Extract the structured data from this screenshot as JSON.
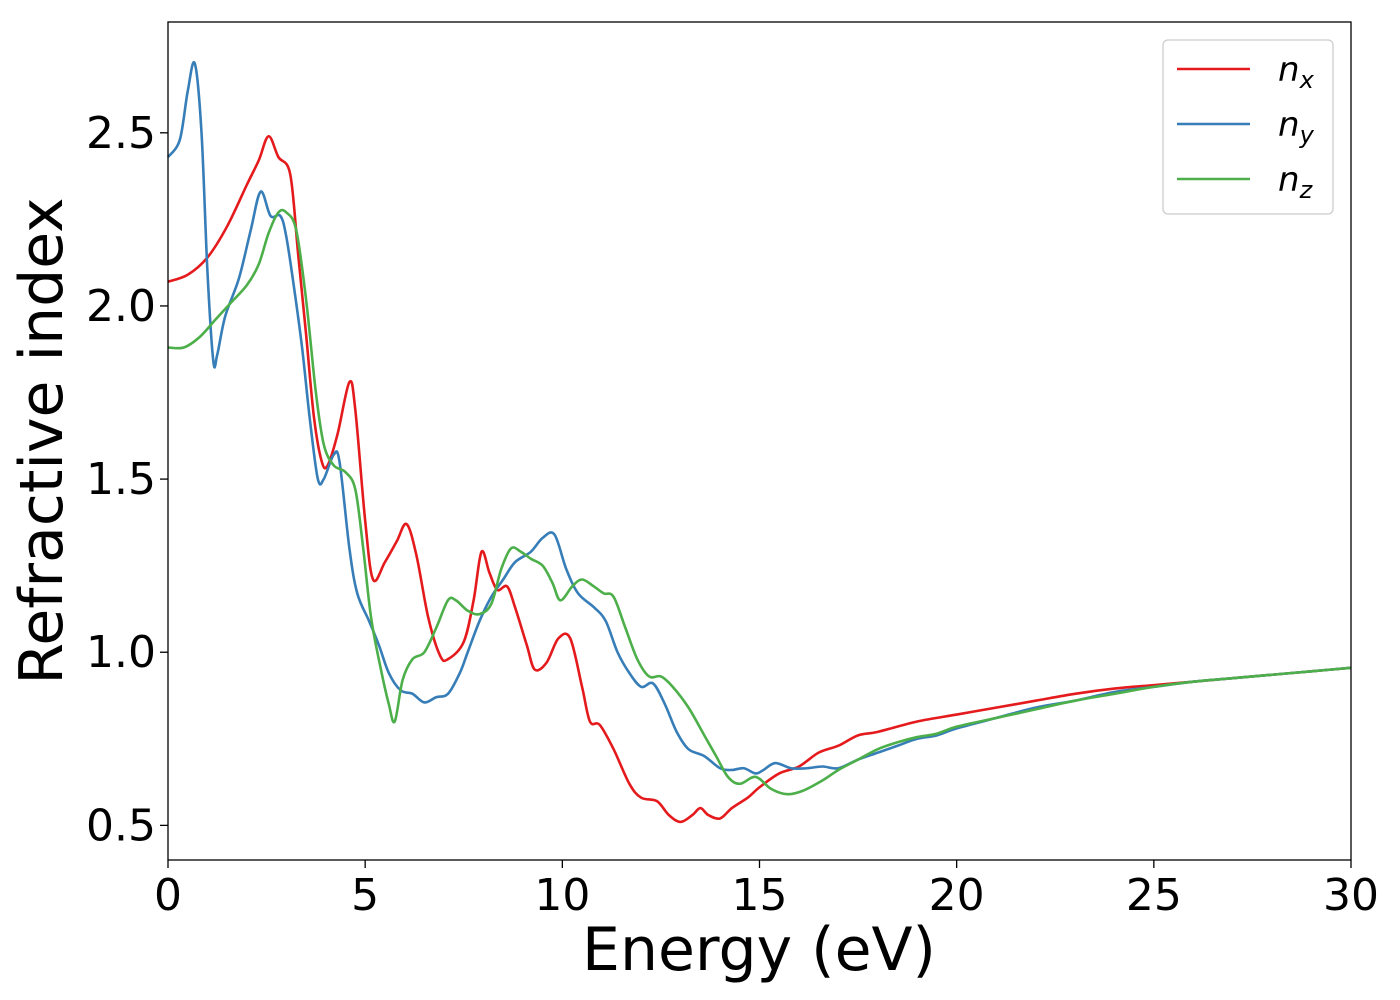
{
  "chart_data": {
    "type": "line",
    "xlabel": "Energy (eV)",
    "ylabel": "Refractive index",
    "xlim": [
      0,
      30
    ],
    "ylim": [
      0.4,
      2.82
    ],
    "xticks": [
      0,
      5,
      10,
      15,
      20,
      25,
      30
    ],
    "xtick_labels": [
      "0",
      "5",
      "10",
      "15",
      "20",
      "25",
      "30"
    ],
    "yticks": [
      0.5,
      1.0,
      1.5,
      2.0,
      2.5
    ],
    "ytick_labels": [
      "0.5",
      "1.0",
      "1.5",
      "2.0",
      "2.5"
    ],
    "grid": false,
    "legend_position": "top-right",
    "series": [
      {
        "name": "n_x",
        "label_base": "n",
        "label_sub": "x",
        "color": "#e41a1c",
        "points": [
          [
            0,
            2.07
          ],
          [
            0.5,
            2.09
          ],
          [
            1,
            2.14
          ],
          [
            1.5,
            2.23
          ],
          [
            2,
            2.35
          ],
          [
            2.3,
            2.42
          ],
          [
            2.55,
            2.49
          ],
          [
            2.8,
            2.43
          ],
          [
            3.1,
            2.38
          ],
          [
            3.3,
            2.15
          ],
          [
            3.5,
            1.92
          ],
          [
            3.7,
            1.68
          ],
          [
            3.9,
            1.55
          ],
          [
            4.05,
            1.54
          ],
          [
            4.3,
            1.63
          ],
          [
            4.6,
            1.78
          ],
          [
            4.75,
            1.7
          ],
          [
            5,
            1.38
          ],
          [
            5.2,
            1.21
          ],
          [
            5.5,
            1.26
          ],
          [
            5.8,
            1.32
          ],
          [
            6.05,
            1.37
          ],
          [
            6.3,
            1.28
          ],
          [
            6.6,
            1.1
          ],
          [
            6.9,
            0.99
          ],
          [
            7.1,
            0.98
          ],
          [
            7.5,
            1.03
          ],
          [
            7.75,
            1.15
          ],
          [
            7.95,
            1.29
          ],
          [
            8.15,
            1.23
          ],
          [
            8.35,
            1.18
          ],
          [
            8.6,
            1.19
          ],
          [
            8.8,
            1.13
          ],
          [
            9.1,
            1.02
          ],
          [
            9.3,
            0.95
          ],
          [
            9.6,
            0.97
          ],
          [
            9.9,
            1.04
          ],
          [
            10.2,
            1.04
          ],
          [
            10.5,
            0.9
          ],
          [
            10.7,
            0.8
          ],
          [
            10.95,
            0.79
          ],
          [
            11.3,
            0.72
          ],
          [
            11.7,
            0.62
          ],
          [
            12,
            0.58
          ],
          [
            12.4,
            0.57
          ],
          [
            12.7,
            0.53
          ],
          [
            13,
            0.51
          ],
          [
            13.3,
            0.53
          ],
          [
            13.5,
            0.55
          ],
          [
            13.7,
            0.53
          ],
          [
            14,
            0.52
          ],
          [
            14.3,
            0.55
          ],
          [
            14.7,
            0.58
          ],
          [
            15,
            0.61
          ],
          [
            15.5,
            0.65
          ],
          [
            16,
            0.67
          ],
          [
            16.5,
            0.71
          ],
          [
            17,
            0.73
          ],
          [
            17.5,
            0.76
          ],
          [
            18,
            0.77
          ],
          [
            19,
            0.8
          ],
          [
            20,
            0.82
          ],
          [
            21,
            0.84
          ],
          [
            22,
            0.86
          ],
          [
            23,
            0.88
          ],
          [
            24,
            0.895
          ],
          [
            25,
            0.905
          ],
          [
            26,
            0.915
          ],
          [
            27,
            0.925
          ],
          [
            28,
            0.935
          ],
          [
            29,
            0.945
          ],
          [
            30,
            0.955
          ]
        ]
      },
      {
        "name": "n_y",
        "label_base": "n",
        "label_sub": "y",
        "color": "#377eb8",
        "points": [
          [
            0,
            2.43
          ],
          [
            0.3,
            2.48
          ],
          [
            0.5,
            2.62
          ],
          [
            0.68,
            2.7
          ],
          [
            0.85,
            2.5
          ],
          [
            1,
            2.1
          ],
          [
            1.15,
            1.84
          ],
          [
            1.25,
            1.86
          ],
          [
            1.45,
            1.97
          ],
          [
            1.8,
            2.08
          ],
          [
            2.1,
            2.22
          ],
          [
            2.35,
            2.33
          ],
          [
            2.6,
            2.26
          ],
          [
            2.85,
            2.26
          ],
          [
            3,
            2.2
          ],
          [
            3.2,
            2.05
          ],
          [
            3.4,
            1.88
          ],
          [
            3.6,
            1.67
          ],
          [
            3.8,
            1.5
          ],
          [
            3.95,
            1.5
          ],
          [
            4.2,
            1.57
          ],
          [
            4.35,
            1.55
          ],
          [
            4.6,
            1.3
          ],
          [
            4.8,
            1.17
          ],
          [
            5.1,
            1.09
          ],
          [
            5.35,
            1.02
          ],
          [
            5.6,
            0.94
          ],
          [
            5.9,
            0.89
          ],
          [
            6.2,
            0.88
          ],
          [
            6.5,
            0.855
          ],
          [
            6.8,
            0.87
          ],
          [
            7.1,
            0.88
          ],
          [
            7.4,
            0.94
          ],
          [
            7.6,
            1.0
          ],
          [
            7.9,
            1.09
          ],
          [
            8.2,
            1.16
          ],
          [
            8.5,
            1.21
          ],
          [
            8.8,
            1.26
          ],
          [
            9.2,
            1.29
          ],
          [
            9.5,
            1.33
          ],
          [
            9.8,
            1.34
          ],
          [
            10.1,
            1.24
          ],
          [
            10.4,
            1.17
          ],
          [
            10.8,
            1.13
          ],
          [
            11.1,
            1.09
          ],
          [
            11.4,
            1.0
          ],
          [
            11.7,
            0.94
          ],
          [
            12,
            0.9
          ],
          [
            12.3,
            0.91
          ],
          [
            12.6,
            0.85
          ],
          [
            12.9,
            0.77
          ],
          [
            13.2,
            0.72
          ],
          [
            13.6,
            0.7
          ],
          [
            14,
            0.665
          ],
          [
            14.3,
            0.66
          ],
          [
            14.6,
            0.665
          ],
          [
            14.9,
            0.65
          ],
          [
            15.1,
            0.66
          ],
          [
            15.4,
            0.68
          ],
          [
            15.8,
            0.665
          ],
          [
            16.2,
            0.665
          ],
          [
            16.6,
            0.67
          ],
          [
            17,
            0.665
          ],
          [
            17.5,
            0.69
          ],
          [
            18,
            0.71
          ],
          [
            18.5,
            0.73
          ],
          [
            19,
            0.75
          ],
          [
            19.5,
            0.76
          ],
          [
            20,
            0.78
          ],
          [
            21,
            0.81
          ],
          [
            22,
            0.84
          ],
          [
            23,
            0.86
          ],
          [
            24,
            0.885
          ],
          [
            25,
            0.9
          ],
          [
            26,
            0.915
          ],
          [
            27,
            0.925
          ],
          [
            28,
            0.935
          ],
          [
            29,
            0.945
          ],
          [
            30,
            0.955
          ]
        ]
      },
      {
        "name": "n_z",
        "label_base": "n",
        "label_sub": "z",
        "color": "#4daf4a",
        "points": [
          [
            0,
            1.88
          ],
          [
            0.4,
            1.88
          ],
          [
            0.8,
            1.91
          ],
          [
            1.2,
            1.96
          ],
          [
            1.6,
            2.01
          ],
          [
            2,
            2.06
          ],
          [
            2.3,
            2.12
          ],
          [
            2.55,
            2.21
          ],
          [
            2.8,
            2.27
          ],
          [
            3,
            2.27
          ],
          [
            3.25,
            2.22
          ],
          [
            3.5,
            2.02
          ],
          [
            3.75,
            1.75
          ],
          [
            3.95,
            1.6
          ],
          [
            4.2,
            1.54
          ],
          [
            4.5,
            1.52
          ],
          [
            4.75,
            1.47
          ],
          [
            4.95,
            1.3
          ],
          [
            5.15,
            1.1
          ],
          [
            5.4,
            0.95
          ],
          [
            5.6,
            0.85
          ],
          [
            5.75,
            0.8
          ],
          [
            5.95,
            0.92
          ],
          [
            6.2,
            0.98
          ],
          [
            6.5,
            1.0
          ],
          [
            6.8,
            1.07
          ],
          [
            7.1,
            1.15
          ],
          [
            7.3,
            1.15
          ],
          [
            7.6,
            1.12
          ],
          [
            7.9,
            1.11
          ],
          [
            8.2,
            1.14
          ],
          [
            8.45,
            1.24
          ],
          [
            8.7,
            1.3
          ],
          [
            8.95,
            1.29
          ],
          [
            9.2,
            1.27
          ],
          [
            9.5,
            1.25
          ],
          [
            9.75,
            1.2
          ],
          [
            9.95,
            1.15
          ],
          [
            10.25,
            1.19
          ],
          [
            10.5,
            1.21
          ],
          [
            10.8,
            1.19
          ],
          [
            11.05,
            1.17
          ],
          [
            11.3,
            1.16
          ],
          [
            11.6,
            1.07
          ],
          [
            11.9,
            0.98
          ],
          [
            12.2,
            0.93
          ],
          [
            12.5,
            0.93
          ],
          [
            12.8,
            0.9
          ],
          [
            13.2,
            0.84
          ],
          [
            13.6,
            0.76
          ],
          [
            13.9,
            0.7
          ],
          [
            14.2,
            0.64
          ],
          [
            14.5,
            0.62
          ],
          [
            14.9,
            0.64
          ],
          [
            15.3,
            0.605
          ],
          [
            15.7,
            0.59
          ],
          [
            16.1,
            0.6
          ],
          [
            16.6,
            0.63
          ],
          [
            17,
            0.66
          ],
          [
            17.5,
            0.69
          ],
          [
            18,
            0.72
          ],
          [
            18.5,
            0.74
          ],
          [
            19,
            0.755
          ],
          [
            19.5,
            0.765
          ],
          [
            20,
            0.785
          ],
          [
            21,
            0.81
          ],
          [
            22,
            0.835
          ],
          [
            23,
            0.86
          ],
          [
            24,
            0.88
          ],
          [
            25,
            0.9
          ],
          [
            26,
            0.915
          ],
          [
            27,
            0.925
          ],
          [
            28,
            0.935
          ],
          [
            29,
            0.945
          ],
          [
            30,
            0.955
          ]
        ]
      }
    ]
  }
}
